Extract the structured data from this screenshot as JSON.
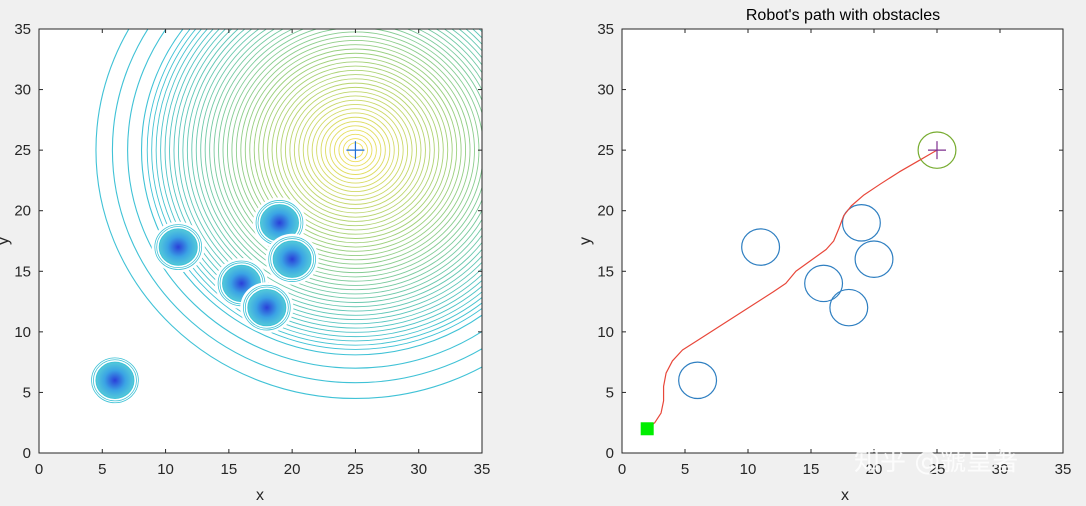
{
  "colors": {
    "figure_bg": "#f0f0f0",
    "axes_bg": "#ffffff",
    "axis_line": "#262626",
    "contour_outer": "#40c2d6",
    "contour_goal_far": "#9fd07a",
    "contour_goal_near": "#f1e05a",
    "well_center": "#2a3fd9",
    "well_mid": "#3aa3e4",
    "obstacle_circle": "#2f7fc1",
    "goal_circle": "#77ac30",
    "goal_marker_left": "#1f6fd6",
    "goal_marker_right": "#7e2f8e",
    "path": "#e8473a",
    "start_marker": "#00ee00"
  },
  "watermark": {
    "text": "知乎 @虢皇著"
  },
  "chart_data": [
    {
      "id": "potential-field",
      "type": "contour",
      "title": "",
      "xlabel": "x",
      "ylabel": "y",
      "xlim": [
        0,
        35
      ],
      "ylim": [
        0,
        35
      ],
      "xticks": [
        "0",
        "5",
        "10",
        "15",
        "20",
        "25",
        "30",
        "35"
      ],
      "yticks": [
        "0",
        "5",
        "10",
        "15",
        "20",
        "25",
        "30",
        "35"
      ],
      "goal": {
        "x": 25,
        "y": 25
      },
      "attractive_ring_radii": [
        20.5,
        19.2,
        18.0,
        16.9
      ],
      "obstacles": [
        {
          "x": 6,
          "y": 6,
          "r": 1.5
        },
        {
          "x": 11,
          "y": 17,
          "r": 1.5
        },
        {
          "x": 16,
          "y": 14,
          "r": 1.5
        },
        {
          "x": 18,
          "y": 12,
          "r": 1.5
        },
        {
          "x": 19,
          "y": 19,
          "r": 1.5
        },
        {
          "x": 20,
          "y": 16,
          "r": 1.5
        }
      ]
    },
    {
      "id": "robot-path",
      "type": "line",
      "title": "Robot's path with obstacles",
      "xlabel": "x",
      "ylabel": "y",
      "xlim": [
        0,
        35
      ],
      "ylim": [
        0,
        35
      ],
      "xticks": [
        "0",
        "5",
        "10",
        "15",
        "20",
        "25",
        "30",
        "35"
      ],
      "yticks": [
        "0",
        "5",
        "10",
        "15",
        "20",
        "25",
        "30",
        "35"
      ],
      "start": {
        "x": 2,
        "y": 2
      },
      "goal": {
        "x": 25,
        "y": 25,
        "r": 1.5
      },
      "obstacles": [
        {
          "x": 6,
          "y": 6,
          "r": 1.5
        },
        {
          "x": 11,
          "y": 17,
          "r": 1.5
        },
        {
          "x": 16,
          "y": 14,
          "r": 1.5
        },
        {
          "x": 18,
          "y": 12,
          "r": 1.5
        },
        {
          "x": 19,
          "y": 19,
          "r": 1.5
        },
        {
          "x": 20,
          "y": 16,
          "r": 1.5
        }
      ],
      "path": {
        "x": [
          2.0,
          2.6,
          3.1,
          3.3,
          3.3,
          3.5,
          4.0,
          4.8,
          6.0,
          7.5,
          9.0,
          10.5,
          12.0,
          13.0,
          13.8,
          15.0,
          16.2,
          16.8,
          17.2,
          17.6,
          18.2,
          19.2,
          20.5,
          22.0,
          23.5,
          24.5,
          25.0
        ],
        "y": [
          2.0,
          2.5,
          3.3,
          4.3,
          5.5,
          6.6,
          7.6,
          8.5,
          9.3,
          10.3,
          11.3,
          12.3,
          13.3,
          14.0,
          15.0,
          15.9,
          16.8,
          17.5,
          18.5,
          19.6,
          20.4,
          21.3,
          22.2,
          23.2,
          24.1,
          24.7,
          25.0
        ]
      }
    }
  ]
}
